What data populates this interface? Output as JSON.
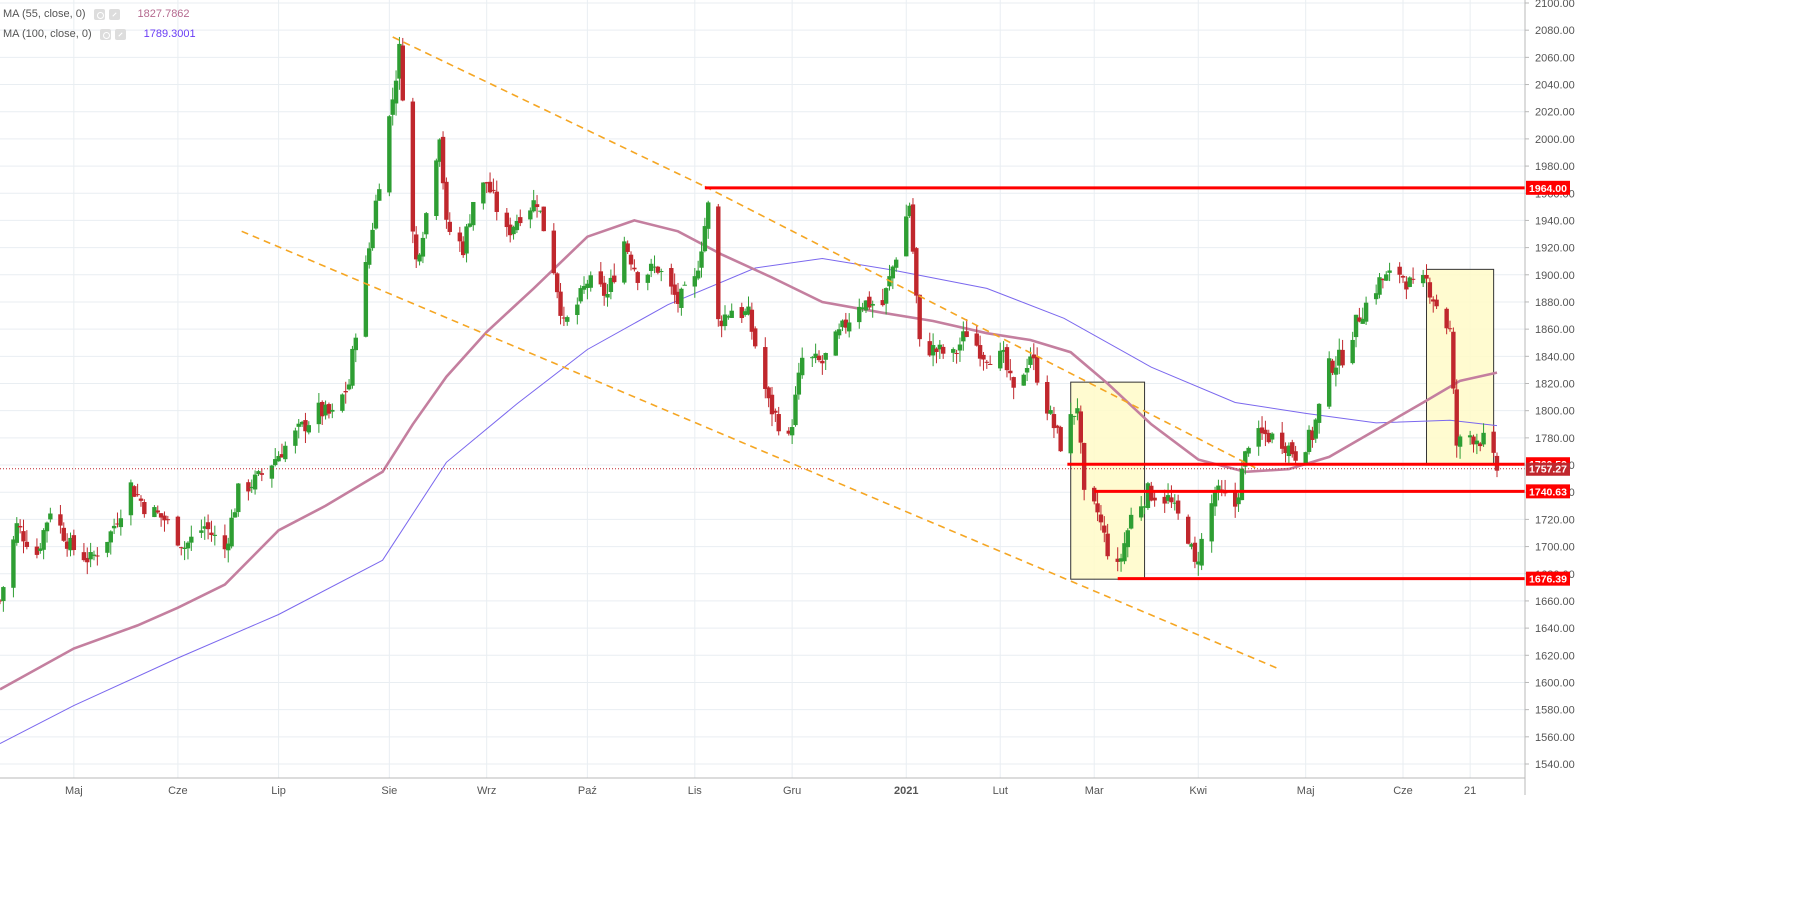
{
  "colors": {
    "up": "#2e9e33",
    "down": "#c0272d",
    "ma55": "#c47f9f",
    "ma100": "#7b68ee",
    "trend": "#f5a623",
    "level": "#ff0000",
    "box_fill": "#fffac8",
    "grid": "#e9eef2",
    "axis_text": "#555555"
  },
  "legend": [
    {
      "label": "MA (55, close, 0)",
      "value": "1827.7862",
      "color": "#b56a8f"
    },
    {
      "label": "MA (100, close, 0)",
      "value": "1789.3001",
      "color": "#6a3df5"
    }
  ],
  "chart_data": {
    "type": "candlestick",
    "y_axis": {
      "min": 1530,
      "max": 2100,
      "ticks": [
        1540,
        1560,
        1580,
        1600,
        1620,
        1640,
        1660,
        1680,
        1700,
        1720,
        1740,
        1760,
        1780,
        1800,
        1820,
        1840,
        1860,
        1880,
        1900,
        1920,
        1940,
        1960,
        1980,
        2000,
        2020,
        2040,
        2060,
        2080,
        2100
      ],
      "tick_labels": [
        "1540.00",
        "1560.00",
        "1580.00",
        "1600.00",
        "1620.00",
        "1640.00",
        "1660.00",
        "1680.00",
        "1700.00",
        "1720.00",
        "1740.00",
        "1760.00",
        "1780.00",
        "1800.00",
        "1820.00",
        "1840.00",
        "1860.00",
        "1880.00",
        "1900.00",
        "1920.00",
        "1940.00",
        "1960.00",
        "1980.00",
        "2000.00",
        "2020.00",
        "2040.00",
        "2060.00",
        "2080.00",
        "2100.00"
      ]
    },
    "x_axis": {
      "start": "2020-04-09",
      "end": "2021-06-29",
      "ticks": [
        {
          "date": "2020-05-01",
          "label": "Maj"
        },
        {
          "date": "2020-06-01",
          "label": "Cze"
        },
        {
          "date": "2020-07-01",
          "label": "Lip"
        },
        {
          "date": "2020-08-03",
          "label": "Sie"
        },
        {
          "date": "2020-09-01",
          "label": "Wrz"
        },
        {
          "date": "2020-10-01",
          "label": "Paź"
        },
        {
          "date": "2020-11-02",
          "label": "Lis"
        },
        {
          "date": "2020-12-01",
          "label": "Gru"
        },
        {
          "date": "2021-01-04",
          "label": "2021"
        },
        {
          "date": "2021-02-01",
          "label": "Lut"
        },
        {
          "date": "2021-03-01",
          "label": "Mar"
        },
        {
          "date": "2021-04-01",
          "label": "Kwi"
        },
        {
          "date": "2021-05-03",
          "label": "Maj"
        },
        {
          "date": "2021-06-01",
          "label": "Cze"
        },
        {
          "date": "2021-06-21",
          "label": "21"
        }
      ]
    },
    "close_path": [
      [
        "2020-04-09",
        1660
      ],
      [
        "2020-04-14",
        1715
      ],
      [
        "2020-04-20",
        1695
      ],
      [
        "2020-04-24",
        1728
      ],
      [
        "2020-04-30",
        1700
      ],
      [
        "2020-05-06",
        1690
      ],
      [
        "2020-05-12",
        1710
      ],
      [
        "2020-05-18",
        1745
      ],
      [
        "2020-05-22",
        1730
      ],
      [
        "2020-05-28",
        1720
      ],
      [
        "2020-06-03",
        1700
      ],
      [
        "2020-06-09",
        1715
      ],
      [
        "2020-06-15",
        1698
      ],
      [
        "2020-06-19",
        1740
      ],
      [
        "2020-06-25",
        1750
      ],
      [
        "2020-07-01",
        1768
      ],
      [
        "2020-07-07",
        1785
      ],
      [
        "2020-07-13",
        1800
      ],
      [
        "2020-07-17",
        1796
      ],
      [
        "2020-07-22",
        1820
      ],
      [
        "2020-07-24",
        1860
      ],
      [
        "2020-07-28",
        1920
      ],
      [
        "2020-07-31",
        1970
      ],
      [
        "2020-08-04",
        2030
      ],
      [
        "2020-08-06",
        2065
      ],
      [
        "2020-08-07",
        2035
      ],
      [
        "2020-08-10",
        1930
      ],
      [
        "2020-08-11",
        1910
      ],
      [
        "2020-08-14",
        1945
      ],
      [
        "2020-08-18",
        2005
      ],
      [
        "2020-08-20",
        1935
      ],
      [
        "2020-08-25",
        1920
      ],
      [
        "2020-08-28",
        1955
      ],
      [
        "2020-09-01",
        1968
      ],
      [
        "2020-09-07",
        1930
      ],
      [
        "2020-09-11",
        1945
      ],
      [
        "2020-09-16",
        1955
      ],
      [
        "2020-09-21",
        1905
      ],
      [
        "2020-09-24",
        1862
      ],
      [
        "2020-09-28",
        1878
      ],
      [
        "2020-10-01",
        1895
      ],
      [
        "2020-10-07",
        1885
      ],
      [
        "2020-10-12",
        1925
      ],
      [
        "2020-10-16",
        1900
      ],
      [
        "2020-10-22",
        1905
      ],
      [
        "2020-10-28",
        1880
      ],
      [
        "2020-11-02",
        1895
      ],
      [
        "2020-11-06",
        1950
      ],
      [
        "2020-11-09",
        1865
      ],
      [
        "2020-11-13",
        1875
      ],
      [
        "2020-11-18",
        1870
      ],
      [
        "2020-11-24",
        1805
      ],
      [
        "2020-11-30",
        1778
      ],
      [
        "2020-12-04",
        1838
      ],
      [
        "2020-12-10",
        1835
      ],
      [
        "2020-12-16",
        1860
      ],
      [
        "2020-12-21",
        1880
      ],
      [
        "2020-12-28",
        1878
      ],
      [
        "2021-01-05",
        1952
      ],
      [
        "2021-01-08",
        1848
      ],
      [
        "2021-01-12",
        1845
      ],
      [
        "2021-01-18",
        1840
      ],
      [
        "2021-01-22",
        1858
      ],
      [
        "2021-01-27",
        1842
      ],
      [
        "2021-02-02",
        1838
      ],
      [
        "2021-02-05",
        1812
      ],
      [
        "2021-02-10",
        1842
      ],
      [
        "2021-02-16",
        1795
      ],
      [
        "2021-02-19",
        1775
      ],
      [
        "2021-02-24",
        1805
      ],
      [
        "2021-02-26",
        1735
      ],
      [
        "2021-03-02",
        1725
      ],
      [
        "2021-03-05",
        1698
      ],
      [
        "2021-03-08",
        1683
      ],
      [
        "2021-03-12",
        1722
      ],
      [
        "2021-03-17",
        1740
      ],
      [
        "2021-03-23",
        1735
      ],
      [
        "2021-03-29",
        1708
      ],
      [
        "2021-03-31",
        1685
      ],
      [
        "2021-04-06",
        1740
      ],
      [
        "2021-04-12",
        1730
      ],
      [
        "2021-04-16",
        1778
      ],
      [
        "2021-04-21",
        1782
      ],
      [
        "2021-04-26",
        1778
      ],
      [
        "2021-04-30",
        1768
      ],
      [
        "2021-05-05",
        1782
      ],
      [
        "2021-05-10",
        1832
      ],
      [
        "2021-05-14",
        1840
      ],
      [
        "2021-05-19",
        1870
      ],
      [
        "2021-05-25",
        1895
      ],
      [
        "2021-05-31",
        1902
      ],
      [
        "2021-06-04",
        1890
      ],
      [
        "2021-06-08",
        1895
      ],
      [
        "2021-06-11",
        1878
      ],
      [
        "2021-06-15",
        1858
      ],
      [
        "2021-06-16",
        1812
      ],
      [
        "2021-06-17",
        1775
      ],
      [
        "2021-06-21",
        1782
      ],
      [
        "2021-06-25",
        1778
      ],
      [
        "2021-06-29",
        1757
      ]
    ],
    "ma55": [
      [
        "2020-04-09",
        1595
      ],
      [
        "2020-05-01",
        1625
      ],
      [
        "2020-05-20",
        1642
      ],
      [
        "2020-06-01",
        1655
      ],
      [
        "2020-06-15",
        1672
      ],
      [
        "2020-07-01",
        1712
      ],
      [
        "2020-07-15",
        1730
      ],
      [
        "2020-08-01",
        1755
      ],
      [
        "2020-08-10",
        1790
      ],
      [
        "2020-08-20",
        1825
      ],
      [
        "2020-09-01",
        1858
      ],
      [
        "2020-09-15",
        1890
      ],
      [
        "2020-10-01",
        1928
      ],
      [
        "2020-10-15",
        1940
      ],
      [
        "2020-10-28",
        1932
      ],
      [
        "2020-11-10",
        1915
      ],
      [
        "2020-11-25",
        1898
      ],
      [
        "2020-12-10",
        1880
      ],
      [
        "2020-12-28",
        1872
      ],
      [
        "2021-01-12",
        1866
      ],
      [
        "2021-01-28",
        1857
      ],
      [
        "2021-02-10",
        1852
      ],
      [
        "2021-02-22",
        1843
      ],
      [
        "2021-03-05",
        1820
      ],
      [
        "2021-03-18",
        1790
      ],
      [
        "2021-04-01",
        1764
      ],
      [
        "2021-04-15",
        1755
      ],
      [
        "2021-04-28",
        1757
      ],
      [
        "2021-05-10",
        1766
      ],
      [
        "2021-05-24",
        1786
      ],
      [
        "2021-06-07",
        1806
      ],
      [
        "2021-06-18",
        1822
      ],
      [
        "2021-06-29",
        1828
      ]
    ],
    "ma100": [
      [
        "2020-04-09",
        1555
      ],
      [
        "2020-05-01",
        1583
      ],
      [
        "2020-06-01",
        1618
      ],
      [
        "2020-07-01",
        1650
      ],
      [
        "2020-08-01",
        1690
      ],
      [
        "2020-08-20",
        1762
      ],
      [
        "2020-09-10",
        1805
      ],
      [
        "2020-10-01",
        1845
      ],
      [
        "2020-10-25",
        1878
      ],
      [
        "2020-11-20",
        1905
      ],
      [
        "2020-12-10",
        1912
      ],
      [
        "2021-01-01",
        1903
      ],
      [
        "2021-01-28",
        1890
      ],
      [
        "2021-02-20",
        1868
      ],
      [
        "2021-03-18",
        1832
      ],
      [
        "2021-04-12",
        1806
      ],
      [
        "2021-05-03",
        1798
      ],
      [
        "2021-05-24",
        1791
      ],
      [
        "2021-06-15",
        1793
      ],
      [
        "2021-06-29",
        1789
      ]
    ],
    "trend_lines": [
      {
        "from": [
          "2020-08-04",
          2075
        ],
        "to": [
          "2020-11-05",
          1965
        ]
      },
      {
        "from": [
          "2020-11-05",
          1965
        ],
        "to": [
          "2021-04-18",
          1758
        ]
      },
      {
        "from": [
          "2020-06-20",
          1932
        ],
        "to": [
          "2021-04-25",
          1610
        ]
      }
    ],
    "levels": [
      {
        "value": 1964,
        "label": "1964.00",
        "from": "2020-11-05"
      },
      {
        "value": 1760.59,
        "label": "1760.59",
        "from": "2021-02-21"
      },
      {
        "value": 1740.63,
        "label": "1740.63",
        "from": "2021-03-01"
      },
      {
        "value": 1676.39,
        "label": "1676.39",
        "from": "2021-03-08"
      }
    ],
    "current_price": {
      "value": 1757.27,
      "label": "1757.27"
    },
    "boxes": [
      {
        "from_date": "2021-02-22",
        "to_date": "2021-03-16",
        "top": 1821,
        "bottom": 1676
      },
      {
        "from_date": "2021-06-08",
        "to_date": "2021-06-28",
        "top": 1904,
        "bottom": 1760
      }
    ]
  }
}
